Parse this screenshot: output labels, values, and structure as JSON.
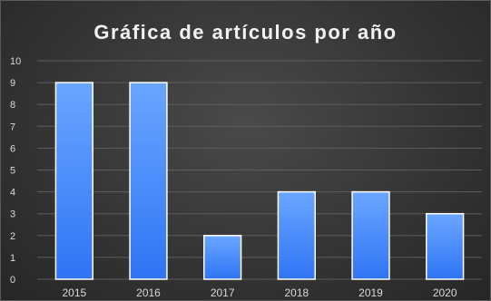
{
  "chart_data": {
    "type": "bar",
    "title": "Gráfica de artículos por año",
    "xlabel": "",
    "ylabel": "",
    "categories": [
      "2015",
      "2016",
      "2017",
      "2018",
      "2019",
      "2020"
    ],
    "values": [
      9,
      9,
      2,
      4,
      4,
      3
    ],
    "ylim": [
      0,
      10
    ],
    "yticks": [
      0,
      1,
      2,
      3,
      4,
      5,
      6,
      7,
      8,
      9,
      10
    ],
    "grid": true,
    "legend": "none",
    "colors": {
      "bar_top": "#6aa6ff",
      "bar_bottom": "#2f74f5",
      "bar_border": "#ffffff",
      "background": "#363636",
      "text": "#d9d9d9"
    }
  }
}
